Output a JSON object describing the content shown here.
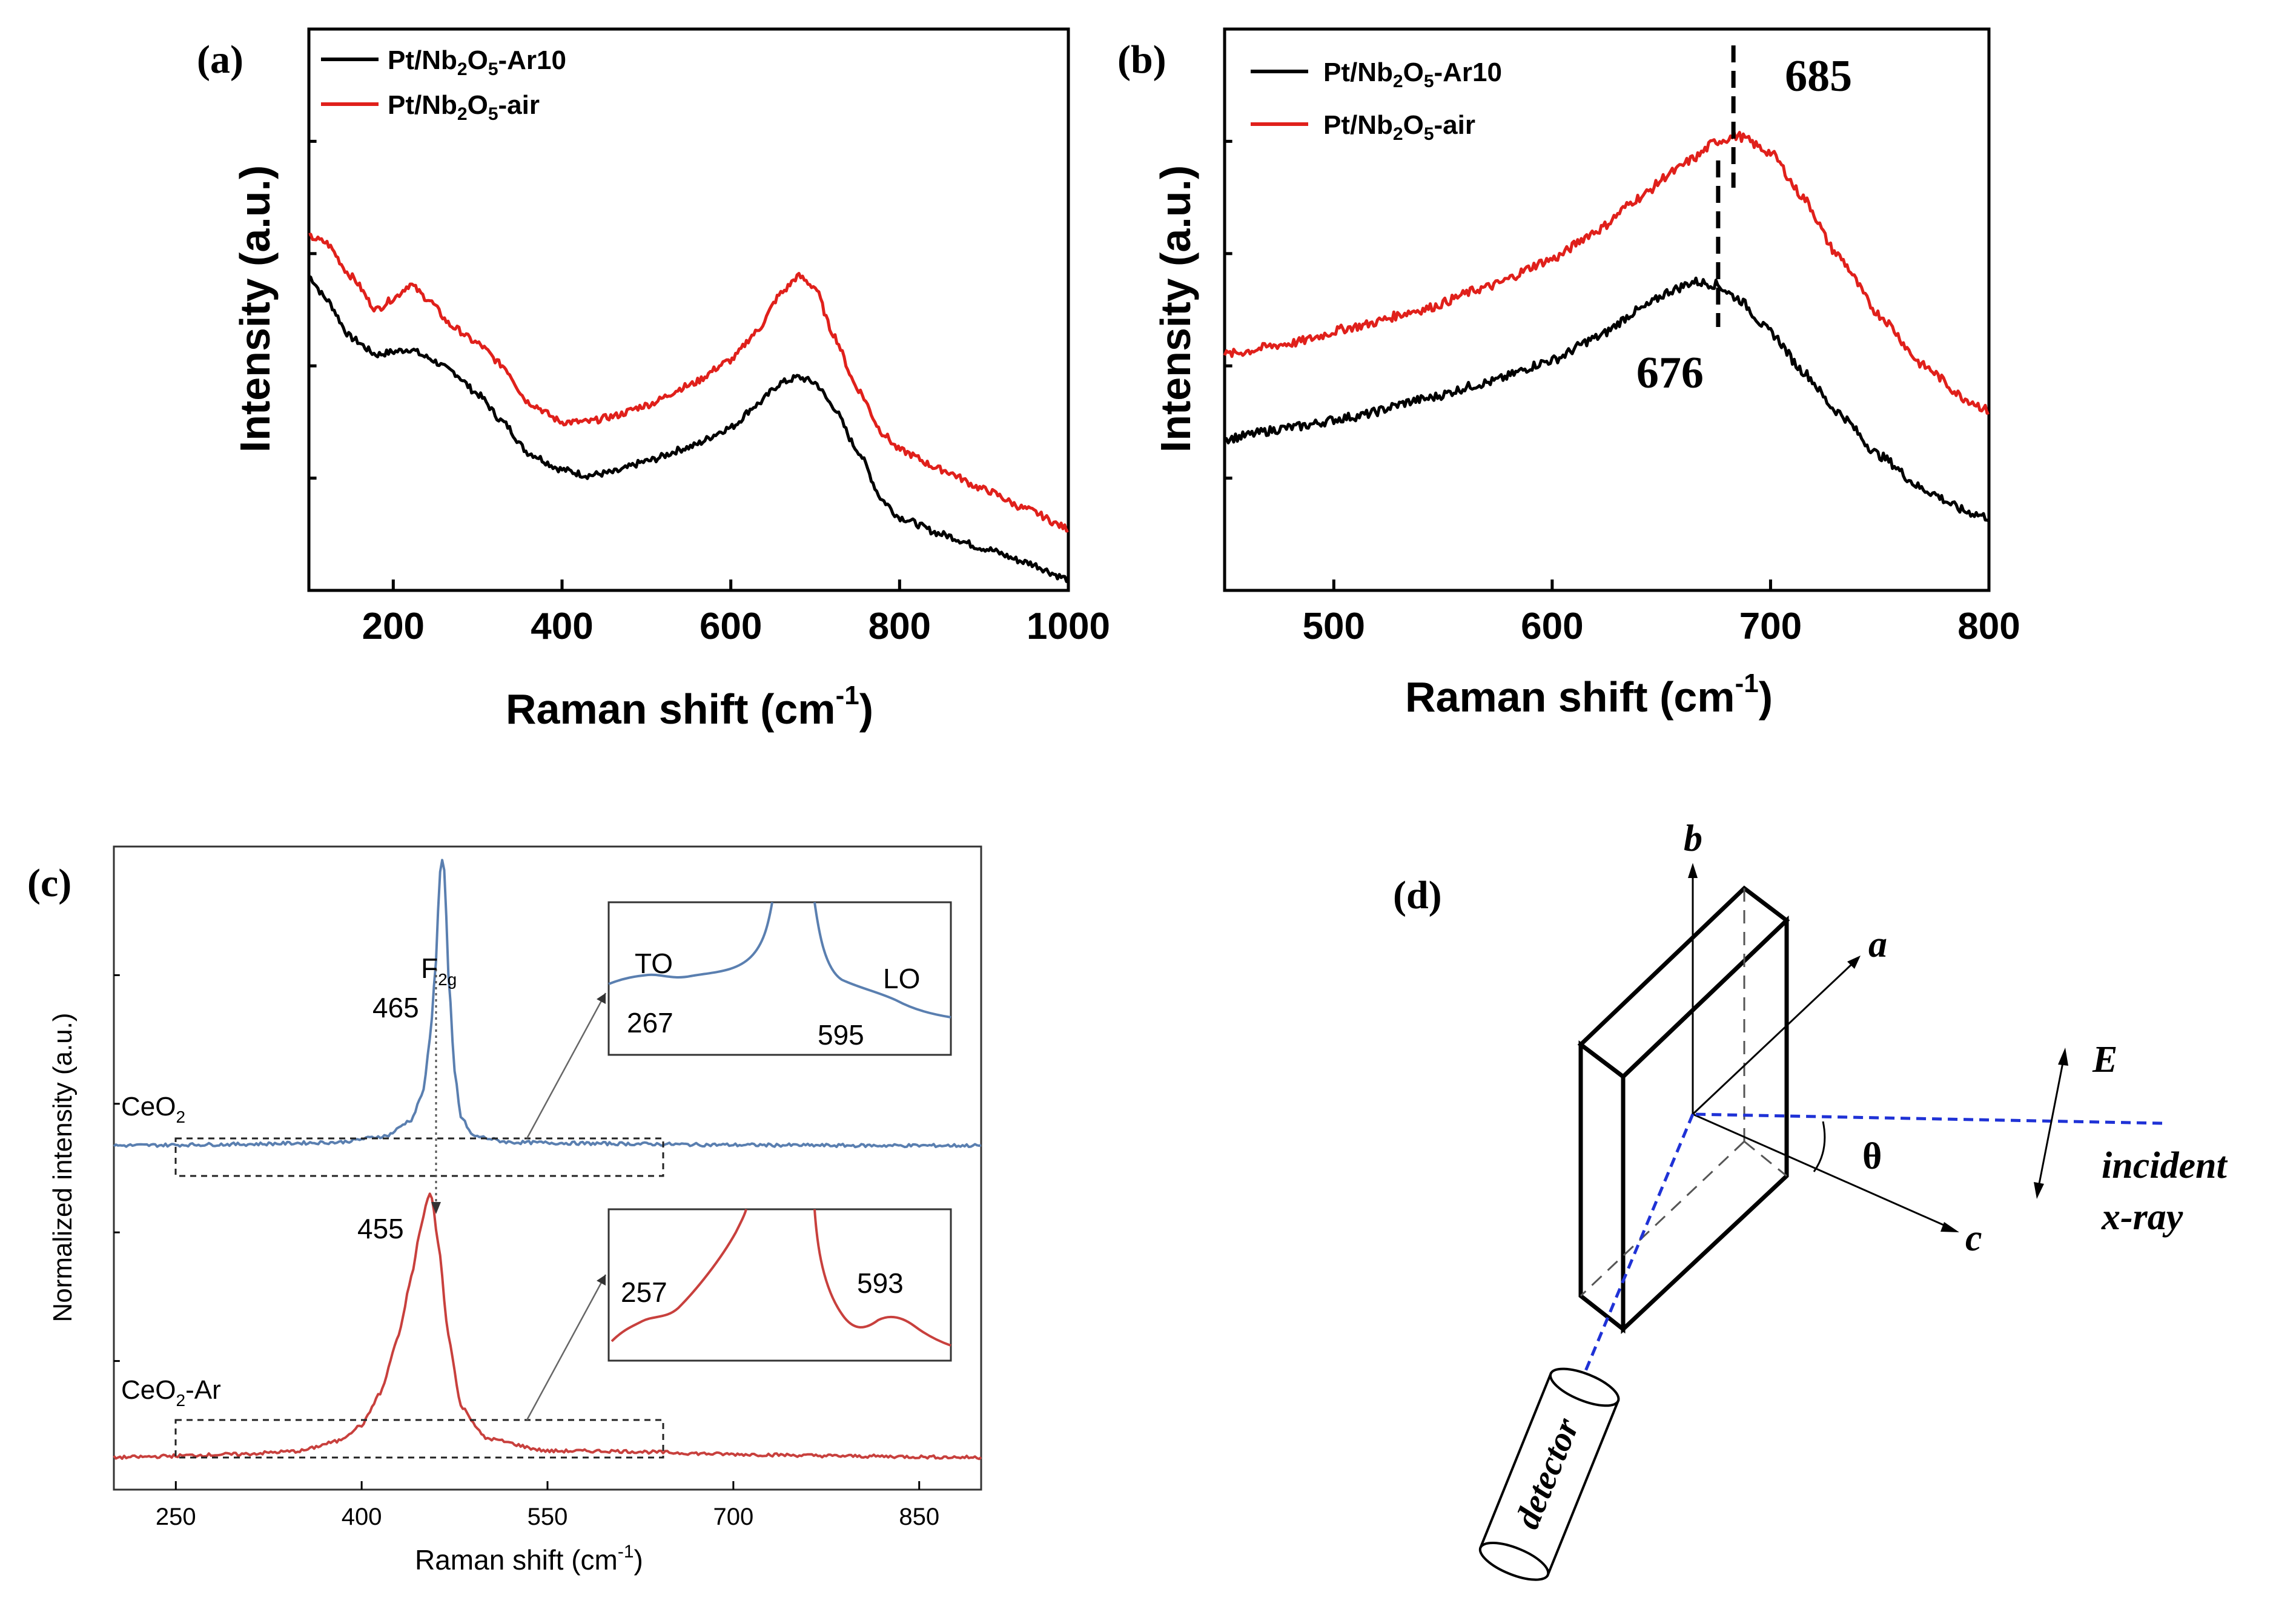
{
  "panels": {
    "a": {
      "label": "(a)"
    },
    "b": {
      "label": "(b)"
    },
    "c": {
      "label": "(c)"
    },
    "d": {
      "label": "(d)"
    }
  },
  "chart_data": [
    {
      "id": "a",
      "type": "line",
      "title": "",
      "xlabel": "Raman shift (cm",
      "xlabel_sup": "-1",
      "xlabel_end": ")",
      "ylabel": "Intensity (a.u.)",
      "xlim": [
        100,
        1000
      ],
      "ylim": [
        0,
        1
      ],
      "xticks": [
        200,
        400,
        600,
        800,
        1000
      ],
      "grid": false,
      "legend": "top-left",
      "series": [
        {
          "name": "Pt/Nb2O5-Ar10",
          "legend_parts": [
            "Pt/Nb",
            "2",
            "O",
            "5",
            "-Ar10"
          ],
          "color": "#000000",
          "x": [
            100,
            120,
            150,
            180,
            200,
            220,
            240,
            270,
            300,
            330,
            360,
            400,
            430,
            460,
            500,
            550,
            600,
            630,
            660,
            680,
            700,
            720,
            750,
            780,
            800,
            850,
            900,
            950,
            1000
          ],
          "y": [
            0.56,
            0.52,
            0.45,
            0.42,
            0.425,
            0.43,
            0.415,
            0.39,
            0.35,
            0.3,
            0.245,
            0.215,
            0.205,
            0.21,
            0.23,
            0.255,
            0.29,
            0.33,
            0.37,
            0.38,
            0.37,
            0.33,
            0.25,
            0.16,
            0.13,
            0.1,
            0.075,
            0.05,
            0.02
          ]
        },
        {
          "name": "Pt/Nb2O5-air",
          "legend_parts": [
            "Pt/Nb",
            "2",
            "O",
            "5",
            "-air"
          ],
          "color": "#e0201b",
          "x": [
            100,
            120,
            150,
            180,
            200,
            220,
            240,
            270,
            300,
            330,
            360,
            400,
            430,
            460,
            500,
            550,
            600,
            630,
            660,
            680,
            700,
            720,
            750,
            780,
            800,
            850,
            900,
            950,
            1000
          ],
          "y": [
            0.63,
            0.62,
            0.56,
            0.5,
            0.52,
            0.545,
            0.52,
            0.47,
            0.44,
            0.4,
            0.335,
            0.3,
            0.3,
            0.31,
            0.33,
            0.365,
            0.41,
            0.46,
            0.53,
            0.56,
            0.54,
            0.46,
            0.36,
            0.28,
            0.25,
            0.215,
            0.18,
            0.145,
            0.11
          ]
        }
      ]
    },
    {
      "id": "b",
      "type": "line",
      "title": "",
      "xlabel": "Raman shift (cm",
      "xlabel_sup": "-1",
      "xlabel_end": ")",
      "ylabel": "Intensity (a.u.)",
      "xlim": [
        450,
        800
      ],
      "ylim": [
        0,
        1
      ],
      "xticks": [
        500,
        600,
        700,
        800
      ],
      "grid": false,
      "legend": "top-left",
      "annotations": [
        {
          "text": "685",
          "x": 683
        },
        {
          "text": "676",
          "x": 676
        }
      ],
      "series": [
        {
          "name": "Pt/Nb2O5-Ar10",
          "legend_parts": [
            "Pt/Nb",
            "2",
            "O",
            "5",
            "-Ar10"
          ],
          "color": "#000000",
          "x": [
            450,
            480,
            510,
            540,
            570,
            600,
            620,
            640,
            655,
            665,
            675,
            685,
            700,
            715,
            730,
            750,
            770,
            790,
            800
          ],
          "y": [
            0.27,
            0.29,
            0.31,
            0.34,
            0.37,
            0.41,
            0.45,
            0.5,
            0.535,
            0.55,
            0.545,
            0.52,
            0.46,
            0.39,
            0.32,
            0.24,
            0.18,
            0.14,
            0.13
          ]
        },
        {
          "name": "Pt/Nb2O5-air",
          "legend_parts": [
            "Pt/Nb",
            "2",
            "O",
            "5",
            "-air"
          ],
          "color": "#e0201b",
          "x": [
            450,
            480,
            510,
            540,
            570,
            600,
            620,
            640,
            655,
            665,
            675,
            685,
            700,
            715,
            730,
            750,
            770,
            790,
            800
          ],
          "y": [
            0.42,
            0.44,
            0.47,
            0.5,
            0.54,
            0.59,
            0.64,
            0.7,
            0.745,
            0.77,
            0.8,
            0.81,
            0.78,
            0.7,
            0.6,
            0.49,
            0.4,
            0.34,
            0.32
          ]
        }
      ]
    },
    {
      "id": "c",
      "type": "line",
      "title": "",
      "xlabel": "Raman shift (cm",
      "xlabel_sup": "-1",
      "xlabel_end": ")",
      "ylabel": "Normalized intensity (a.u.)",
      "xlim": [
        200,
        900
      ],
      "ylim": [
        0,
        1
      ],
      "xticks": [
        250,
        400,
        550,
        700,
        850
      ],
      "grid": false,
      "annotations": [
        {
          "text": "F",
          "sub": "2g"
        },
        {
          "text": "465"
        },
        {
          "text": "455"
        },
        {
          "text": "CeO",
          "sub": "2"
        },
        {
          "text": "CeO",
          "sub": "2",
          "suffix": "-Ar"
        }
      ],
      "insets": [
        {
          "labels": [
            "TO",
            "267",
            "595",
            "LO"
          ]
        },
        {
          "labels": [
            "257",
            "593"
          ]
        }
      ],
      "series": [
        {
          "name": "CeO2",
          "color": "#5a7fb0",
          "x": [
            200,
            300,
            380,
            420,
            440,
            450,
            455,
            460,
            463,
            465,
            467,
            470,
            475,
            480,
            490,
            520,
            600,
            700,
            800,
            900
          ],
          "y": [
            0.535,
            0.537,
            0.54,
            0.55,
            0.575,
            0.62,
            0.7,
            0.82,
            0.96,
            0.98,
            0.96,
            0.8,
            0.65,
            0.58,
            0.55,
            0.54,
            0.538,
            0.536,
            0.535,
            0.535
          ]
        },
        {
          "name": "CeO2-Ar",
          "color": "#c8403d",
          "x": [
            200,
            300,
            350,
            380,
            400,
            415,
            430,
            440,
            448,
            453,
            455,
            457,
            462,
            470,
            480,
            500,
            550,
            600,
            700,
            800,
            900
          ],
          "y": [
            0.05,
            0.055,
            0.06,
            0.075,
            0.1,
            0.15,
            0.24,
            0.33,
            0.41,
            0.45,
            0.46,
            0.45,
            0.38,
            0.24,
            0.13,
            0.08,
            0.06,
            0.06,
            0.055,
            0.052,
            0.05
          ]
        }
      ]
    }
  ],
  "diagram_d": {
    "axes": [
      "b",
      "a",
      "c"
    ],
    "labels": {
      "E": "E",
      "theta": "θ",
      "incident_1": "incident",
      "incident_2": "x-ray",
      "detector": "detector"
    }
  }
}
